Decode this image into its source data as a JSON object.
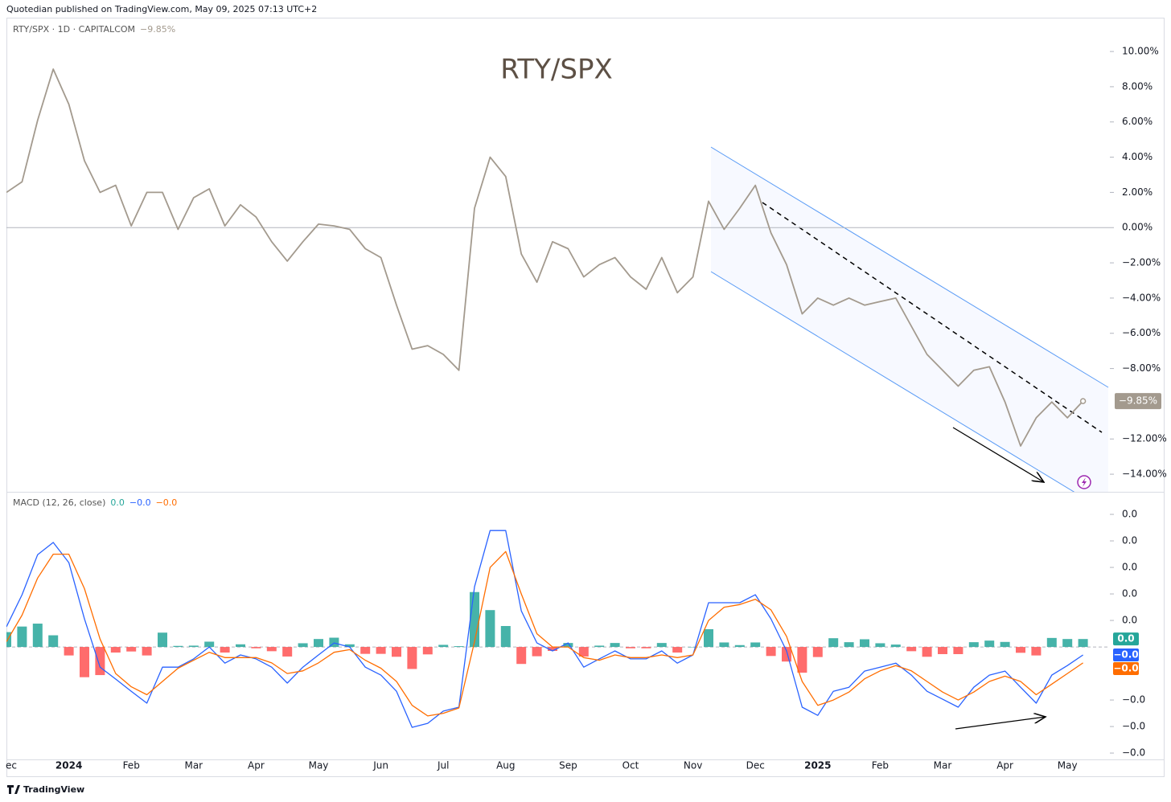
{
  "header": {
    "text": "Quotedian published on TradingView.com, May 09, 2025 07:13 UTC+2"
  },
  "footer": {
    "brand": "TradingView"
  },
  "chart_data": [
    {
      "type": "line",
      "title": "RTY/SPX",
      "legend": "RTY/SPX · 1D · CAPITALCOM",
      "categories": [
        "ec",
        null,
        null,
        null,
        "2024",
        null,
        null,
        null,
        "Feb",
        null,
        null,
        null,
        "Mar",
        null,
        null,
        null,
        "Apr",
        null,
        null,
        null,
        "May",
        null,
        null,
        null,
        "Jun",
        null,
        null,
        null,
        "Jul",
        null,
        null,
        null,
        "Aug",
        null,
        null,
        null,
        "Sep",
        null,
        null,
        null,
        "Oct",
        null,
        null,
        null,
        "Nov",
        null,
        null,
        null,
        "Dec",
        null,
        null,
        null,
        "2025",
        null,
        null,
        null,
        "Feb",
        null,
        null,
        null,
        "Mar",
        null,
        null,
        null,
        "Apr",
        null,
        null,
        null,
        "May",
        null
      ],
      "series": [
        {
          "name": "RTY/SPX",
          "color": "#a39a8e",
          "last_label": "−9.85%",
          "values": [
            2.0,
            2.6,
            6.1,
            9.0,
            7.0,
            3.8,
            2.0,
            2.4,
            0.1,
            2.0,
            2.0,
            -0.1,
            1.7,
            2.2,
            0.1,
            1.3,
            0.6,
            -0.8,
            -1.9,
            -0.8,
            0.2,
            0.1,
            -0.1,
            -1.2,
            -1.7,
            -4.4,
            -6.9,
            -6.7,
            -7.2,
            -8.1,
            1.1,
            4.0,
            2.9,
            -1.5,
            -3.1,
            -0.8,
            -1.2,
            -2.8,
            -2.1,
            -1.7,
            -2.8,
            -3.5,
            -1.7,
            -3.7,
            -2.8,
            1.5,
            -0.1,
            1.1,
            2.4,
            -0.3,
            -2.1,
            -4.9,
            -4.0,
            -4.4,
            -4.0,
            -4.4,
            -4.2,
            -4.0,
            -5.6,
            -7.2,
            -8.1,
            -9.0,
            -8.1,
            -7.9,
            -9.9,
            -12.4,
            -10.8,
            -9.9,
            -10.8,
            -9.85
          ]
        }
      ],
      "ylim": [
        -15,
        11.92
      ],
      "yticks": [
        {
          "value": 10,
          "label": "10.00%"
        },
        {
          "value": 8,
          "label": "8.00%"
        },
        {
          "value": 6,
          "label": "6.00%"
        },
        {
          "value": 4,
          "label": "4.00%"
        },
        {
          "value": 2,
          "label": "2.00%"
        },
        {
          "value": 0,
          "label": "0.00%"
        },
        {
          "value": -2,
          "label": "−2.00%"
        },
        {
          "value": -4,
          "label": "−4.00%"
        },
        {
          "value": -6,
          "label": "−6.00%"
        },
        {
          "value": -8,
          "label": "−8.00%"
        },
        {
          "value": -12,
          "label": "−12.00%"
        },
        {
          "value": -14,
          "label": "−14.00%"
        }
      ],
      "grid": false
    },
    {
      "type": "macd",
      "legend": "MACD (12, 26, close)",
      "series": [
        {
          "kind": "histogram",
          "color": "#26a69a",
          "negative_color": "#ff5252",
          "last_label": "0.0",
          "values": [
            0.00056,
            0.00077,
            0.00088,
            0.00044,
            -0.00032,
            -0.00114,
            -0.00106,
            -0.00021,
            -0.00017,
            -0.00032,
            0.00054,
            4e-05,
            5e-05,
            0.0002,
            -0.00021,
            0.0001,
            -5e-05,
            -0.00016,
            -0.00036,
            0.00014,
            0.0003,
            0.00035,
            0.0001,
            -0.00026,
            -0.00026,
            -0.00037,
            -0.00083,
            -0.00028,
            8e-05,
            3e-05,
            0.00207,
            0.00139,
            0.00079,
            -0.00064,
            -0.00035,
            -0.00015,
            0.00015,
            -0.00036,
            5e-05,
            0.00015,
            -5e-05,
            -5e-05,
            0.00015,
            -0.00021,
            0,
            0.00067,
            0.00017,
            7e-05,
            0.00017,
            -0.00034,
            -0.00055,
            -0.00097,
            -0.00038,
            0.00033,
            0.00018,
            0.00029,
            0.00014,
            9e-05,
            -0.00016,
            -0.00037,
            -0.00027,
            -0.00027,
            0.00018,
            0.00024,
            0.00019,
            -0.00022,
            -0.00032,
            0.00034,
            0.0003,
            0.0003
          ]
        },
        {
          "kind": "line",
          "color": "#2962ff",
          "last_label": "−0.0",
          "values": [
            0.00076,
            0.00197,
            0.00348,
            0.00394,
            0.00318,
            0.00106,
            -0.00076,
            -0.00121,
            -0.00167,
            -0.00212,
            -0.00076,
            -0.00076,
            -0.00045,
            0,
            -0.00061,
            -0.0003,
            -0.00045,
            -0.00076,
            -0.00136,
            -0.00076,
            -0.0003,
            0.00015,
            0,
            -0.00076,
            -0.00106,
            -0.00167,
            -0.00303,
            -0.00288,
            -0.00242,
            -0.00227,
            0.00227,
            0.00439,
            0.00439,
            0.00136,
            0.00015,
            -0.00015,
            0.00015,
            -0.00076,
            -0.00045,
            -0.00015,
            -0.00045,
            -0.00045,
            -0.00015,
            -0.00061,
            -0.0003,
            0.00167,
            0.00167,
            0.00167,
            0.00197,
            0.00106,
            -0.00015,
            -0.00227,
            -0.00258,
            -0.00167,
            -0.00152,
            -0.00091,
            -0.00076,
            -0.00061,
            -0.00106,
            -0.00167,
            -0.00197,
            -0.00227,
            -0.00152,
            -0.00106,
            -0.00091,
            -0.00152,
            -0.00212,
            -0.00106,
            -0.0007,
            -0.0003
          ]
        },
        {
          "kind": "line",
          "color": "#ff6d00",
          "last_label": "−0.0",
          "values": [
            0.0002,
            0.0012,
            0.0026,
            0.0035,
            0.0035,
            0.0022,
            0.0003,
            -0.001,
            -0.0015,
            -0.0018,
            -0.0013,
            -0.0008,
            -0.0005,
            -0.0002,
            -0.0004,
            -0.0004,
            -0.0004,
            -0.0006,
            -0.001,
            -0.0009,
            -0.0006,
            -0.0002,
            -0.0001,
            -0.0005,
            -0.0008,
            -0.0013,
            -0.0022,
            -0.0026,
            -0.0025,
            -0.0023,
            0.0002,
            0.003,
            0.0036,
            0.002,
            0.0005,
            0,
            0,
            -0.0004,
            -0.0005,
            -0.0003,
            -0.0004,
            -0.0004,
            -0.0003,
            -0.0004,
            -0.0003,
            0.001,
            0.0015,
            0.0016,
            0.0018,
            0.0014,
            0.0004,
            -0.0013,
            -0.0022,
            -0.002,
            -0.0017,
            -0.0012,
            -0.0009,
            -0.0007,
            -0.0009,
            -0.0013,
            -0.0017,
            -0.002,
            -0.0017,
            -0.0013,
            -0.0011,
            -0.0013,
            -0.0018,
            -0.0014,
            -0.001,
            -0.0006
          ]
        }
      ],
      "ylim": [
        -0.00424,
        0.00582
      ],
      "yticks": [
        {
          "value": 0.005,
          "label": "0.0"
        },
        {
          "value": 0.004,
          "label": "0.0"
        },
        {
          "value": 0.003,
          "label": "0.0"
        },
        {
          "value": 0.002,
          "label": "0.0"
        },
        {
          "value": 0.001,
          "label": "0.0"
        },
        {
          "value": -0.002,
          "label": "−0.0"
        },
        {
          "value": -0.003,
          "label": "−0.0"
        },
        {
          "value": -0.004,
          "label": "−0.0"
        }
      ],
      "grid": false
    }
  ]
}
